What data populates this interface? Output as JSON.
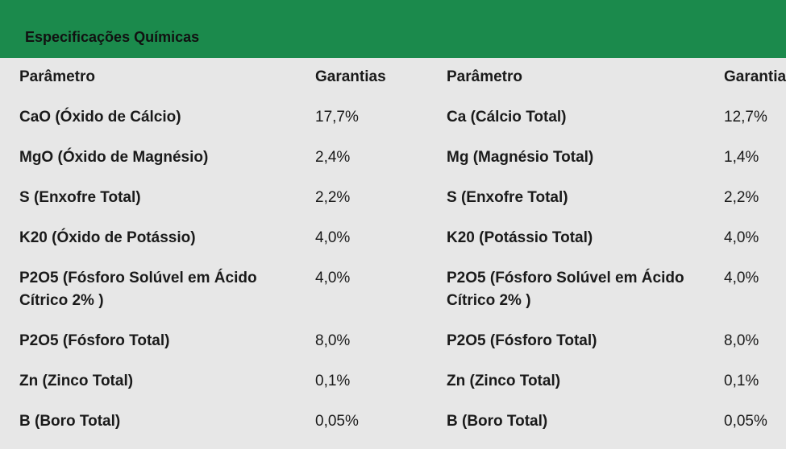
{
  "title": "Especificações Químicas",
  "headers": {
    "param_left": "Parâmetro",
    "guarantee_left": "Garantias",
    "param_right": "Parâmetro",
    "guarantee_right": "Garantias"
  },
  "rows": [
    {
      "left_param": "CaO  (Óxido de Cálcio)",
      "left_value": "17,7%",
      "right_param": "Ca (Cálcio Total)",
      "right_value": "12,7%"
    },
    {
      "left_param": "MgO (Óxido de Magnésio)",
      "left_value": "2,4%",
      "right_param": "Mg (Magnésio Total)",
      "right_value": "1,4%"
    },
    {
      "left_param": "S (Enxofre Total)",
      "left_value": "2,2%",
      "right_param": "S (Enxofre Total)",
      "right_value": "2,2%"
    },
    {
      "left_param": "K20 (Óxido de Potássio)",
      "left_value": "4,0%",
      "right_param": "K20 (Potássio Total)",
      "right_value": "4,0%"
    },
    {
      "left_param": "P2O5 (Fósforo Solúvel em Ácido Cítrico 2% )",
      "left_value": "4,0%",
      "right_param": "P2O5 (Fósforo Solúvel em Ácido Cítrico 2% )",
      "right_value": "4,0%"
    },
    {
      "left_param": "P2O5 (Fósforo Total)",
      "left_value": "8,0%",
      "right_param": "P2O5 (Fósforo Total)",
      "right_value": "8,0%"
    },
    {
      "left_param": "Zn (Zinco Total)",
      "left_value": "0,1%",
      "right_param": "Zn (Zinco Total)",
      "right_value": "0,1%"
    },
    {
      "left_param": "B (Boro Total)",
      "left_value": "0,05%",
      "right_param": "B (Boro Total)",
      "right_value": "0,05%"
    }
  ],
  "colors": {
    "header_bar": "#1b8a4c",
    "background": "#e7e7e7"
  }
}
